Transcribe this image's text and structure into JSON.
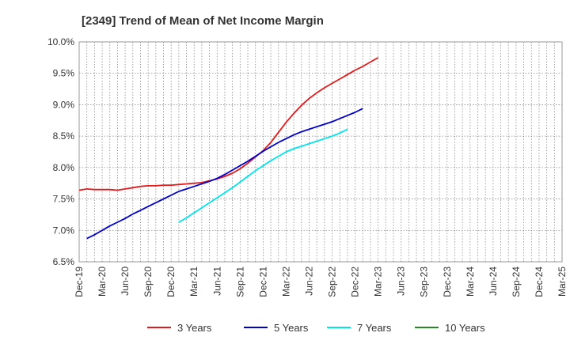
{
  "chart_data": {
    "type": "line",
    "title": "[2349]  Trend of Mean of Net Income Margin",
    "xlabel": "",
    "ylabel": "",
    "ylim": [
      6.5,
      10.0
    ],
    "y_ticks": [
      "6.5%",
      "7.0%",
      "7.5%",
      "8.0%",
      "8.5%",
      "9.0%",
      "9.5%",
      "10.0%"
    ],
    "y_tick_values": [
      6.5,
      7.0,
      7.5,
      8.0,
      8.5,
      9.0,
      9.5,
      10.0
    ],
    "x_ticks": [
      "Dec-19",
      "Mar-20",
      "Jun-20",
      "Sep-20",
      "Dec-20",
      "Mar-21",
      "Jun-21",
      "Sep-21",
      "Dec-21",
      "Mar-22",
      "Jun-22",
      "Sep-22",
      "Dec-22",
      "Mar-23",
      "Jun-23",
      "Sep-23",
      "Dec-23",
      "Mar-24",
      "Jun-24",
      "Sep-24",
      "Dec-24",
      "Mar-25"
    ],
    "grid": true,
    "legend_position": "bottom",
    "series": [
      {
        "name": "3 Years",
        "color": "#e31a1c",
        "values": [
          7.64,
          7.66,
          7.65,
          7.65,
          7.65,
          7.64,
          7.66,
          7.68,
          7.7,
          7.71,
          7.71,
          7.72,
          7.72,
          7.73,
          7.74,
          7.75,
          7.76,
          7.79,
          7.82,
          7.86,
          7.91,
          7.98,
          8.07,
          8.17,
          8.27,
          8.4,
          8.56,
          8.72,
          8.86,
          8.99,
          9.1,
          9.19,
          9.27,
          9.34,
          9.41,
          9.48,
          9.55,
          9.61,
          9.68,
          9.75
        ]
      },
      {
        "name": "5 Years",
        "color": "#0000cc",
        "values": [
          null,
          6.87,
          6.93,
          7.0,
          7.07,
          7.13,
          7.19,
          7.26,
          7.32,
          7.38,
          7.44,
          7.5,
          7.56,
          7.62,
          7.66,
          7.7,
          7.74,
          7.78,
          7.83,
          7.89,
          7.96,
          8.03,
          8.1,
          8.18,
          8.26,
          8.33,
          8.4,
          8.46,
          8.52,
          8.57,
          8.61,
          8.65,
          8.69,
          8.73,
          8.78,
          8.83,
          8.88,
          8.94
        ]
      },
      {
        "name": "7 Years",
        "color": "#00e5ee",
        "values": [
          null,
          null,
          null,
          null,
          null,
          null,
          null,
          null,
          null,
          null,
          null,
          null,
          null,
          7.13,
          7.2,
          7.28,
          7.36,
          7.44,
          7.52,
          7.6,
          7.68,
          7.77,
          7.86,
          7.95,
          8.03,
          8.11,
          8.18,
          8.25,
          8.3,
          8.34,
          8.38,
          8.42,
          8.46,
          8.5,
          8.55,
          8.61
        ]
      },
      {
        "name": "10 Years",
        "color": "#228b22",
        "values": []
      }
    ]
  }
}
